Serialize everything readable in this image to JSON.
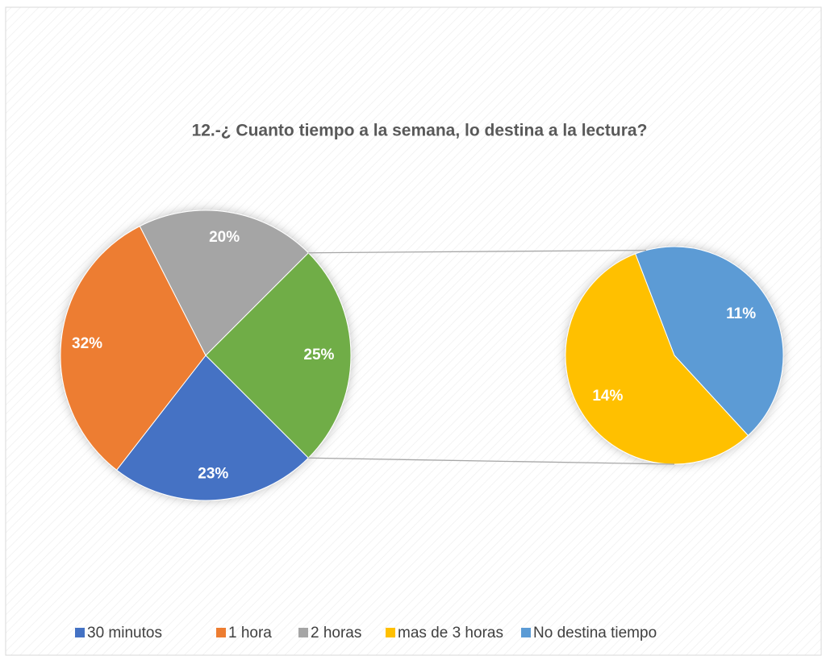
{
  "chart_data": {
    "type": "pie-of-pie",
    "title": "12.-¿ Cuanto tiempo a la semana, lo destina a la lectura?",
    "categories": [
      "30 minutos",
      "1 hora",
      "2 horas",
      "mas de 3 horas",
      "No destina tiempo"
    ],
    "values": [
      23,
      32,
      20,
      14,
      11
    ],
    "value_labels": [
      "23%",
      "32%",
      "20%",
      "14%",
      "11%"
    ],
    "colors": [
      "#4472c4",
      "#ed7d31",
      "#a5a5a5",
      "#ffc000",
      "#5b9bd5"
    ],
    "secondary_count": 2,
    "other_value": 25,
    "other_label": "25%",
    "other_color": "#70ad47",
    "legend": "bottom"
  }
}
